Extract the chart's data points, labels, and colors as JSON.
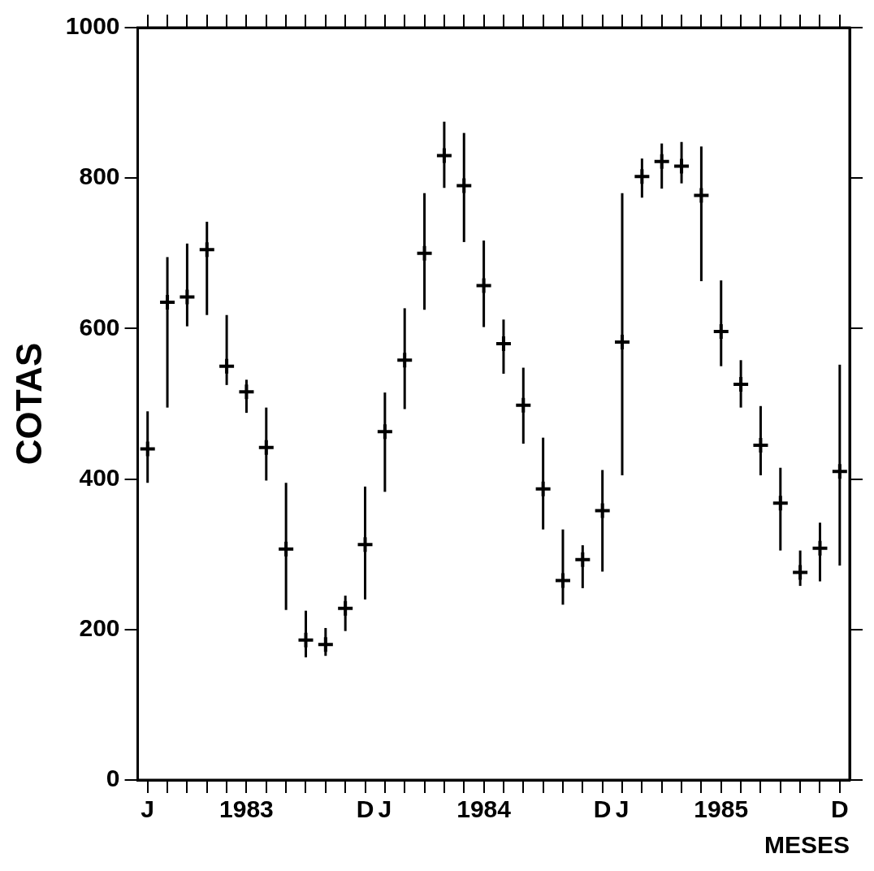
{
  "chart_data": {
    "type": "scatter",
    "xlabel": "MESES",
    "ylabel": "COTAS",
    "categories": [
      "J",
      null,
      null,
      null,
      null,
      "1983",
      null,
      null,
      null,
      null,
      null,
      "D",
      "J",
      null,
      null,
      null,
      null,
      "1984",
      null,
      null,
      null,
      null,
      null,
      "D",
      "J",
      null,
      null,
      null,
      null,
      "1985",
      null,
      null,
      null,
      null,
      null,
      "D"
    ],
    "series": [
      {
        "color": "#000000",
        "values": [
          440,
          635,
          642,
          705,
          550,
          516,
          442,
          307,
          186,
          180,
          228,
          313,
          463,
          558,
          700,
          830,
          790,
          657,
          580,
          498,
          387,
          265,
          293,
          358,
          582,
          802,
          822,
          816,
          777,
          596,
          526,
          445,
          368,
          276,
          308,
          410
        ],
        "errors": [
          [
            395,
            490
          ],
          [
            495,
            695
          ],
          [
            603,
            713
          ],
          [
            618,
            742
          ],
          [
            525,
            618
          ],
          [
            488,
            532
          ],
          [
            398,
            495
          ],
          [
            226,
            395
          ],
          [
            163,
            225
          ],
          [
            165,
            202
          ],
          [
            198,
            245
          ],
          [
            240,
            390
          ],
          [
            383,
            515
          ],
          [
            493,
            627
          ],
          [
            625,
            780
          ],
          [
            787,
            875
          ],
          [
            715,
            860
          ],
          [
            602,
            717
          ],
          [
            540,
            612
          ],
          [
            447,
            548
          ],
          [
            333,
            455
          ],
          [
            233,
            333
          ],
          [
            255,
            312
          ],
          [
            277,
            412
          ],
          [
            405,
            780
          ],
          [
            774,
            826
          ],
          [
            786,
            846
          ],
          [
            793,
            848
          ],
          [
            663,
            842
          ],
          [
            550,
            664
          ],
          [
            495,
            558
          ],
          [
            405,
            497
          ],
          [
            305,
            415
          ],
          [
            258,
            305
          ],
          [
            264,
            342
          ],
          [
            285,
            552
          ]
        ]
      }
    ],
    "ylim": [
      0,
      1000
    ],
    "yticks": [
      0,
      200,
      400,
      600,
      800,
      1000
    ],
    "grid": false,
    "legend": false,
    "marker": "cross"
  }
}
